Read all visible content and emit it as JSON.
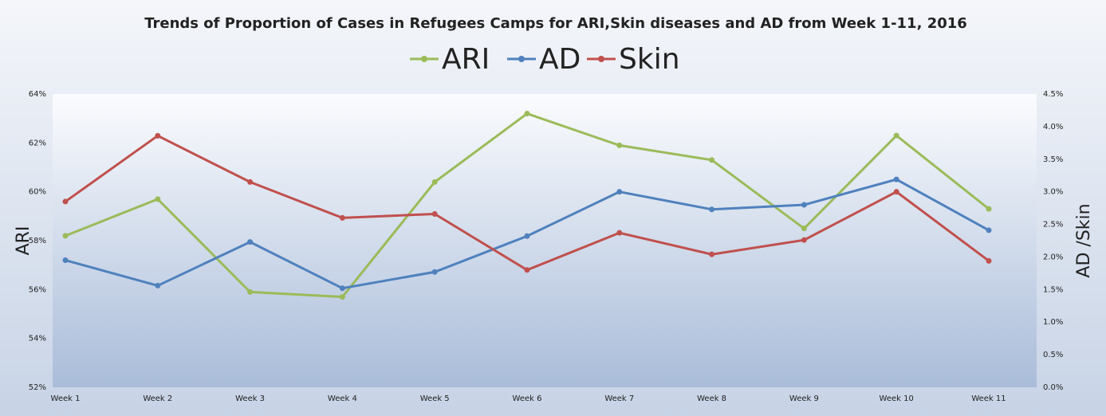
{
  "chart_data": {
    "type": "line",
    "title": "Trends of Proportion of Cases in Refugees Camps for ARI,Skin diseases and AD from Week 1-11, 2016",
    "y_label": "ARI",
    "y2_label": "AD /Skin",
    "categories": [
      "Week 1",
      "Week 2",
      "Week 3",
      "Week 4",
      "Week 5",
      "Week 6",
      "Week 7",
      "Week 8",
      "Week 9",
      "Week 10",
      "Week 11"
    ],
    "series": [
      {
        "name": "ARI",
        "color": "#9bbb59",
        "values": [
          58.2,
          59.7,
          55.9,
          55.7,
          60.4,
          63.2,
          61.9,
          61.3,
          58.5,
          62.3,
          59.3
        ]
      },
      {
        "name": "AD",
        "color": "#4f81bd",
        "axis": "y2",
        "values": [
          1.95,
          1.56,
          2.23,
          1.52,
          1.77,
          2.32,
          3.0,
          2.73,
          2.8,
          3.19,
          2.41
        ]
      },
      {
        "name": "Skin",
        "color": "#c0504d",
        "axis": "y2",
        "values": [
          2.85,
          3.86,
          3.15,
          2.6,
          2.66,
          1.8,
          2.37,
          2.04,
          2.26,
          3.0,
          1.94
        ]
      }
    ],
    "ylim": [
      52,
      64
    ],
    "yticks": [
      {
        "value": 52,
        "label": "52%"
      },
      {
        "value": 54,
        "label": "54%"
      },
      {
        "value": 56,
        "label": "56%"
      },
      {
        "value": 58,
        "label": "58%"
      },
      {
        "value": 60,
        "label": "60%"
      },
      {
        "value": 62,
        "label": "62%"
      },
      {
        "value": 64,
        "label": "64%"
      }
    ],
    "y2lim": [
      0,
      4.5
    ],
    "y2ticks": [
      {
        "value": 0,
        "label": "0.0%"
      },
      {
        "value": 0.5,
        "label": "0.5%"
      },
      {
        "value": 1,
        "label": "1.0%"
      },
      {
        "value": 1.5,
        "label": "1.5%"
      },
      {
        "value": 2,
        "label": "2.0%"
      },
      {
        "value": 2.5,
        "label": "2.5%"
      },
      {
        "value": 3,
        "label": "3.0%"
      },
      {
        "value": 3.5,
        "label": "3.5%"
      },
      {
        "value": 4,
        "label": "4.0%"
      },
      {
        "value": 4.5,
        "label": "4.5%"
      }
    ],
    "legend": "top",
    "grid": false
  }
}
